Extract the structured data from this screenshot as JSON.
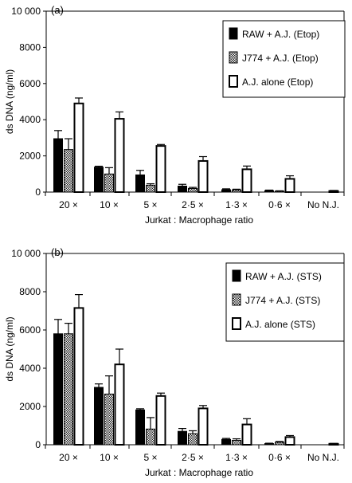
{
  "chart_data": [
    {
      "type": "bar",
      "panel_label": "(a)",
      "xlabel": "Jurkat : Macrophage ratio",
      "ylabel": "ds DNA (ng/ml)",
      "ylim": [
        0,
        10000
      ],
      "yticks": [
        0,
        2000,
        4000,
        6000,
        8000,
        10000
      ],
      "ytick_labels": [
        "0",
        "2000",
        "4000",
        "6000",
        "8000",
        "10 000"
      ],
      "grid": false,
      "legend_position": "top-right",
      "categories": [
        "20 ×",
        "10 ×",
        "5 ×",
        "2·5 ×",
        "1·3 ×",
        "0·6 ×",
        "No N.J."
      ],
      "series": [
        {
          "name": "RAW + A.J. (Etop)",
          "pattern": "solid",
          "color": "#000000",
          "values": [
            2950,
            1380,
            950,
            330,
            130,
            80,
            null
          ],
          "errors": [
            450,
            50,
            250,
            100,
            50,
            30,
            null
          ]
        },
        {
          "name": "J774 + A.J. (Etop)",
          "pattern": "checker",
          "color": "#555555",
          "values": [
            2350,
            1000,
            380,
            200,
            120,
            50,
            null
          ],
          "errors": [
            600,
            350,
            80,
            60,
            40,
            20,
            null
          ]
        },
        {
          "name": "A.J. alone (Etop)",
          "pattern": "open",
          "color": "#ffffff",
          "values": [
            4900,
            4050,
            2550,
            1720,
            1260,
            730,
            60
          ],
          "errors": [
            300,
            380,
            80,
            240,
            180,
            170,
            30
          ]
        }
      ]
    },
    {
      "type": "bar",
      "panel_label": "(b)",
      "xlabel": "Jurkat : Macrophage ratio",
      "ylabel": "ds DNA (ng/ml)",
      "ylim": [
        0,
        10000
      ],
      "yticks": [
        0,
        2000,
        4000,
        6000,
        8000,
        10000
      ],
      "ytick_labels": [
        "0",
        "2000",
        "4000",
        "6000",
        "8000",
        "10 000"
      ],
      "grid": false,
      "legend_position": "top-right",
      "categories": [
        "20 ×",
        "10 ×",
        "5 ×",
        "2·5 ×",
        "1·3 ×",
        "0·6 ×",
        "No N.J."
      ],
      "series": [
        {
          "name": "RAW + A.J. (STS)",
          "pattern": "solid",
          "color": "#000000",
          "values": [
            5800,
            3000,
            1820,
            700,
            280,
            60,
            null
          ],
          "errors": [
            750,
            180,
            60,
            150,
            50,
            20,
            null
          ]
        },
        {
          "name": "J774 + A.J. (STS)",
          "pattern": "checker",
          "color": "#555555",
          "values": [
            5800,
            2650,
            820,
            580,
            230,
            130,
            null
          ],
          "errors": [
            550,
            950,
            600,
            150,
            80,
            40,
            null
          ]
        },
        {
          "name": "A.J. alone (STS)",
          "pattern": "open",
          "color": "#ffffff",
          "values": [
            7150,
            4200,
            2550,
            1900,
            1060,
            400,
            50
          ],
          "errors": [
            700,
            800,
            150,
            150,
            300,
            80,
            20
          ]
        }
      ]
    }
  ]
}
